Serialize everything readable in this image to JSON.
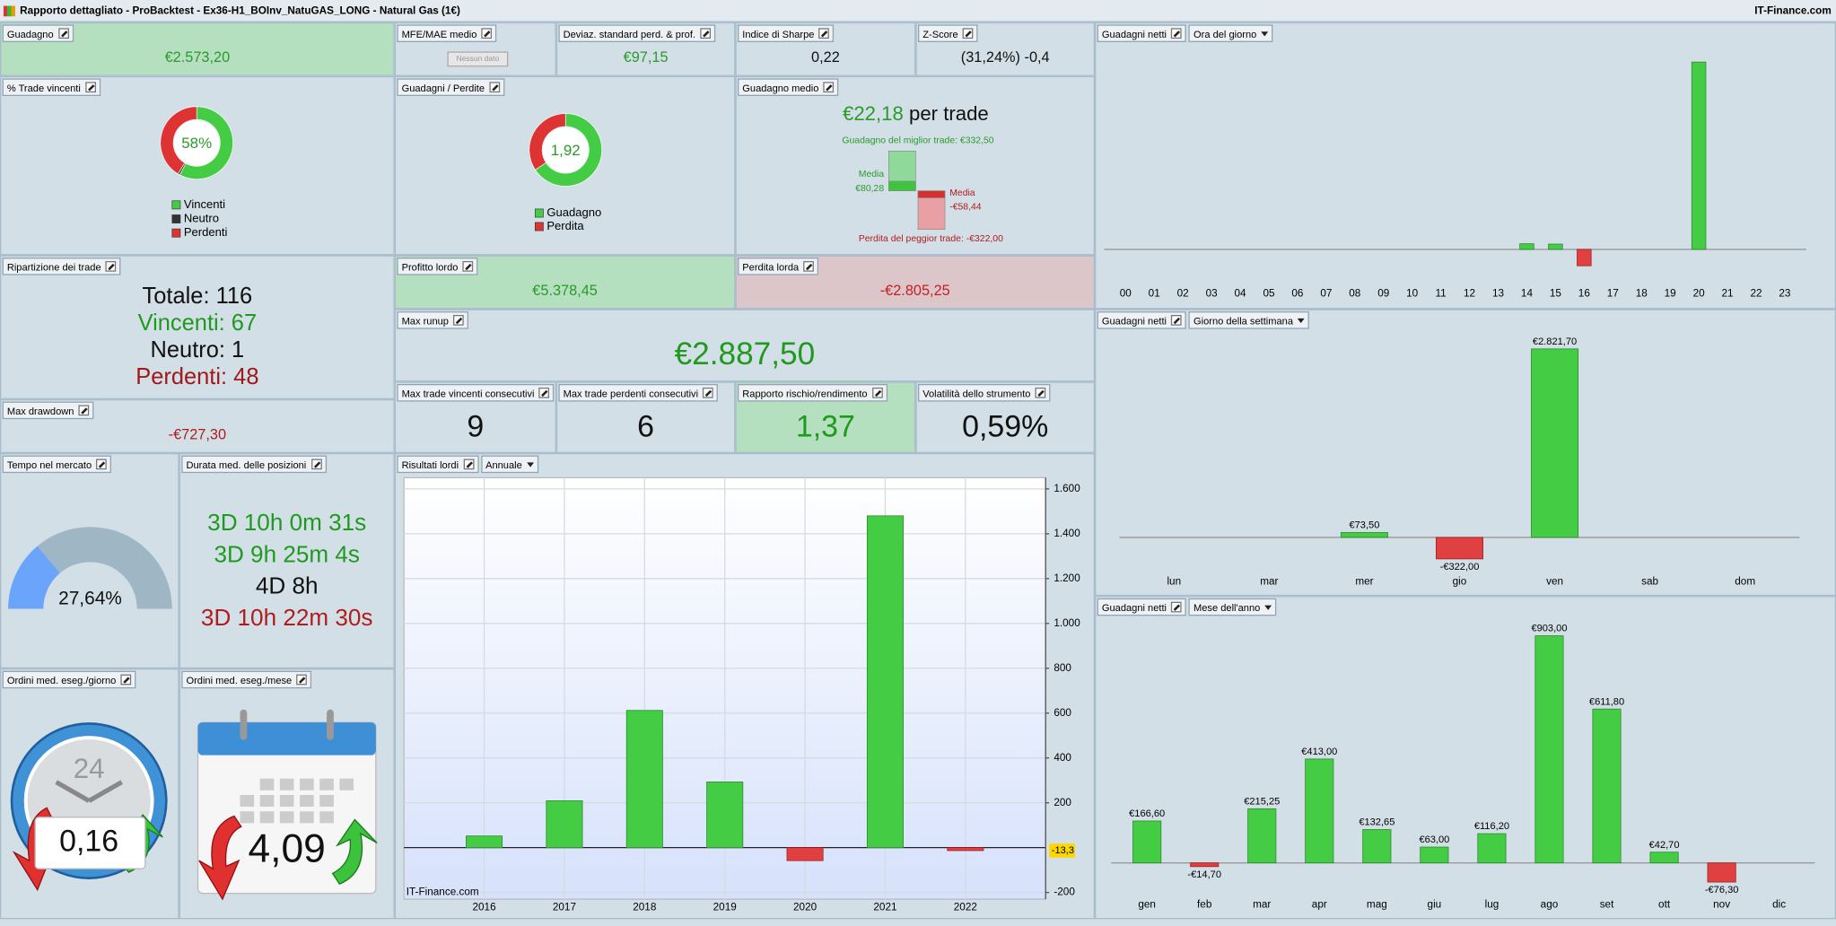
{
  "window": {
    "title": "Rapporto dettagliato - ProBacktest - Ex36-H1_BOInv_NatuGAS_LONG - Natural Gas (1€)",
    "brand": "IT-Finance.com"
  },
  "panels": {
    "guadagno": {
      "title": "Guadagno",
      "value": "€2.573,20"
    },
    "mfe": {
      "title": "MFE/MAE medio",
      "button": "Nessun dato"
    },
    "deviaz": {
      "title": "Deviaz. standard perd. & prof.",
      "value": "€97,15"
    },
    "sharpe": {
      "title": "Indice di Sharpe",
      "value": "0,22"
    },
    "zscore": {
      "title": "Z-Score",
      "value": "(31,24%) -0,4"
    },
    "ripartizione": {
      "title": "Ripartizione dei trade",
      "lines": [
        "Totale: 116",
        "Vincenti: 67",
        "Neutro: 1",
        "Perdenti: 48"
      ]
    },
    "profitto": {
      "title": "Profitto lordo",
      "value": "€5.378,45"
    },
    "perdita": {
      "title": "Perdita lorda",
      "value": "-€2.805,25"
    },
    "runup": {
      "title": "Max runup",
      "value": "€2.887,50"
    },
    "drawdown": {
      "title": "Max drawdown",
      "value": "-€727,30"
    },
    "consec_win": {
      "title": "Max trade vincenti consecutivi",
      "value": "9"
    },
    "consec_loss": {
      "title": "Max trade perdenti consecutivi",
      "value": "6"
    },
    "rischio": {
      "title": "Rapporto rischio/rendimento",
      "value": "1,37"
    },
    "volatilita": {
      "title": "Volatilità dello strumento",
      "value": "0,59%"
    },
    "durata": {
      "title": "Durata med. delle posizioni",
      "lines": [
        "3D 10h 0m 31s",
        "3D 9h 25m 4s",
        "4D 8h",
        "3D 10h 22m 30s"
      ]
    },
    "ordini_giorno": {
      "title": "Ordini med. eseg./giorno",
      "value": "0,16",
      "icon_label": "24"
    },
    "ordini_mese": {
      "title": "Ordini med. eseg./mese",
      "value": "4,09"
    }
  },
  "chart_data": [
    {
      "type": "donut",
      "title": "% Trade vincenti",
      "center_label": "58%",
      "categories": [
        "Vincenti",
        "Neutro",
        "Perdenti"
      ],
      "values": [
        67,
        1,
        48
      ],
      "colors": [
        "#44cc44",
        "#333333",
        "#dd3333"
      ]
    },
    {
      "type": "donut",
      "title": "Guadagni / Perdite",
      "center_label": "1,92",
      "categories": [
        "Guadagno",
        "Perdita"
      ],
      "values": [
        5378.45,
        2805.25
      ],
      "colors": [
        "#44cc44",
        "#dd3333"
      ]
    },
    {
      "type": "range",
      "title": "Guadagno medio",
      "headline": "€22,18",
      "headline_unit": "per trade",
      "best": {
        "value": 332.5,
        "label": "Guadagno del miglior trade: €332,50"
      },
      "worst": {
        "value": -322,
        "label": "Perdita del peggior trade: -€322,00"
      },
      "avg_gain": {
        "value": 80.28,
        "name": "Media",
        "label": "€80,28"
      },
      "avg_loss": {
        "value": -58.44,
        "name": "Media",
        "label": "-€58,44"
      }
    },
    {
      "type": "gauge",
      "title": "Tempo nel mercato",
      "value": 27.64,
      "value_label": "27,64%",
      "ylim": [
        0,
        100
      ]
    },
    {
      "type": "bar",
      "title": "Risultati lordi",
      "dropdown": "Annuale",
      "watermark": "IT-Finance.com",
      "categories": [
        "2016",
        "2017",
        "2018",
        "2019",
        "2020",
        "2021",
        "2022"
      ],
      "values": [
        52,
        209,
        612,
        293,
        -58,
        1480,
        -13.3
      ],
      "value_labels": [
        null,
        null,
        null,
        null,
        null,
        null,
        "-13,3"
      ],
      "ylim": [
        -230,
        1650
      ],
      "yticks": [
        {
          "value": 1600,
          "label": "1.600"
        },
        {
          "value": 1400,
          "label": "1.400"
        },
        {
          "value": 1200,
          "label": "1.200"
        },
        {
          "value": 1000,
          "label": "1.000"
        },
        800,
        600,
        400,
        200,
        -200
      ],
      "grid": true,
      "color": "#44cc44",
      "negative_color": "#e04040"
    },
    {
      "type": "bar",
      "title": "Guadagni netti",
      "dropdown": "Ora del giorno",
      "categories": [
        "00",
        "01",
        "02",
        "03",
        "04",
        "05",
        "06",
        "07",
        "08",
        "09",
        "10",
        "11",
        "12",
        "13",
        "14",
        "15",
        "16",
        "17",
        "18",
        "19",
        "20",
        "21",
        "22",
        "23"
      ],
      "values": [
        0,
        0,
        0,
        0,
        0,
        0,
        0,
        0,
        0,
        0,
        0,
        0,
        0,
        0,
        80,
        75,
        -232,
        0,
        0,
        0,
        2650,
        0,
        0,
        0
      ],
      "color": "#44cc44",
      "negative_color": "#e04040"
    },
    {
      "type": "bar",
      "title": "Guadagni netti",
      "dropdown": "Giorno della settimana",
      "categories": [
        "lun",
        "mar",
        "mer",
        "gio",
        "ven",
        "sab",
        "dom"
      ],
      "values": [
        0,
        0,
        73.5,
        -322,
        2821.7,
        0,
        0
      ],
      "value_labels": [
        null,
        null,
        "€73,50",
        "-€322,00",
        "€2.821,70",
        null,
        null
      ],
      "color": "#44cc44",
      "negative_color": "#e04040"
    },
    {
      "type": "bar",
      "title": "Guadagni netti",
      "dropdown": "Mese dell'anno",
      "categories": [
        "gen",
        "feb",
        "mar",
        "apr",
        "mag",
        "giu",
        "lug",
        "ago",
        "set",
        "ott",
        "nov",
        "dic"
      ],
      "values": [
        166.6,
        -14.7,
        215.25,
        413,
        132.65,
        63,
        116.2,
        903,
        611.8,
        42.7,
        -76.3,
        0
      ],
      "value_labels": [
        "€166,60",
        "-€14,70",
        "€215,25",
        "€413,00",
        "€132,65",
        "€63,00",
        "€116,20",
        "€903,00",
        "€611,80",
        "€42,70",
        "-€76,30",
        null
      ],
      "color": "#44cc44",
      "negative_color": "#e04040"
    }
  ]
}
